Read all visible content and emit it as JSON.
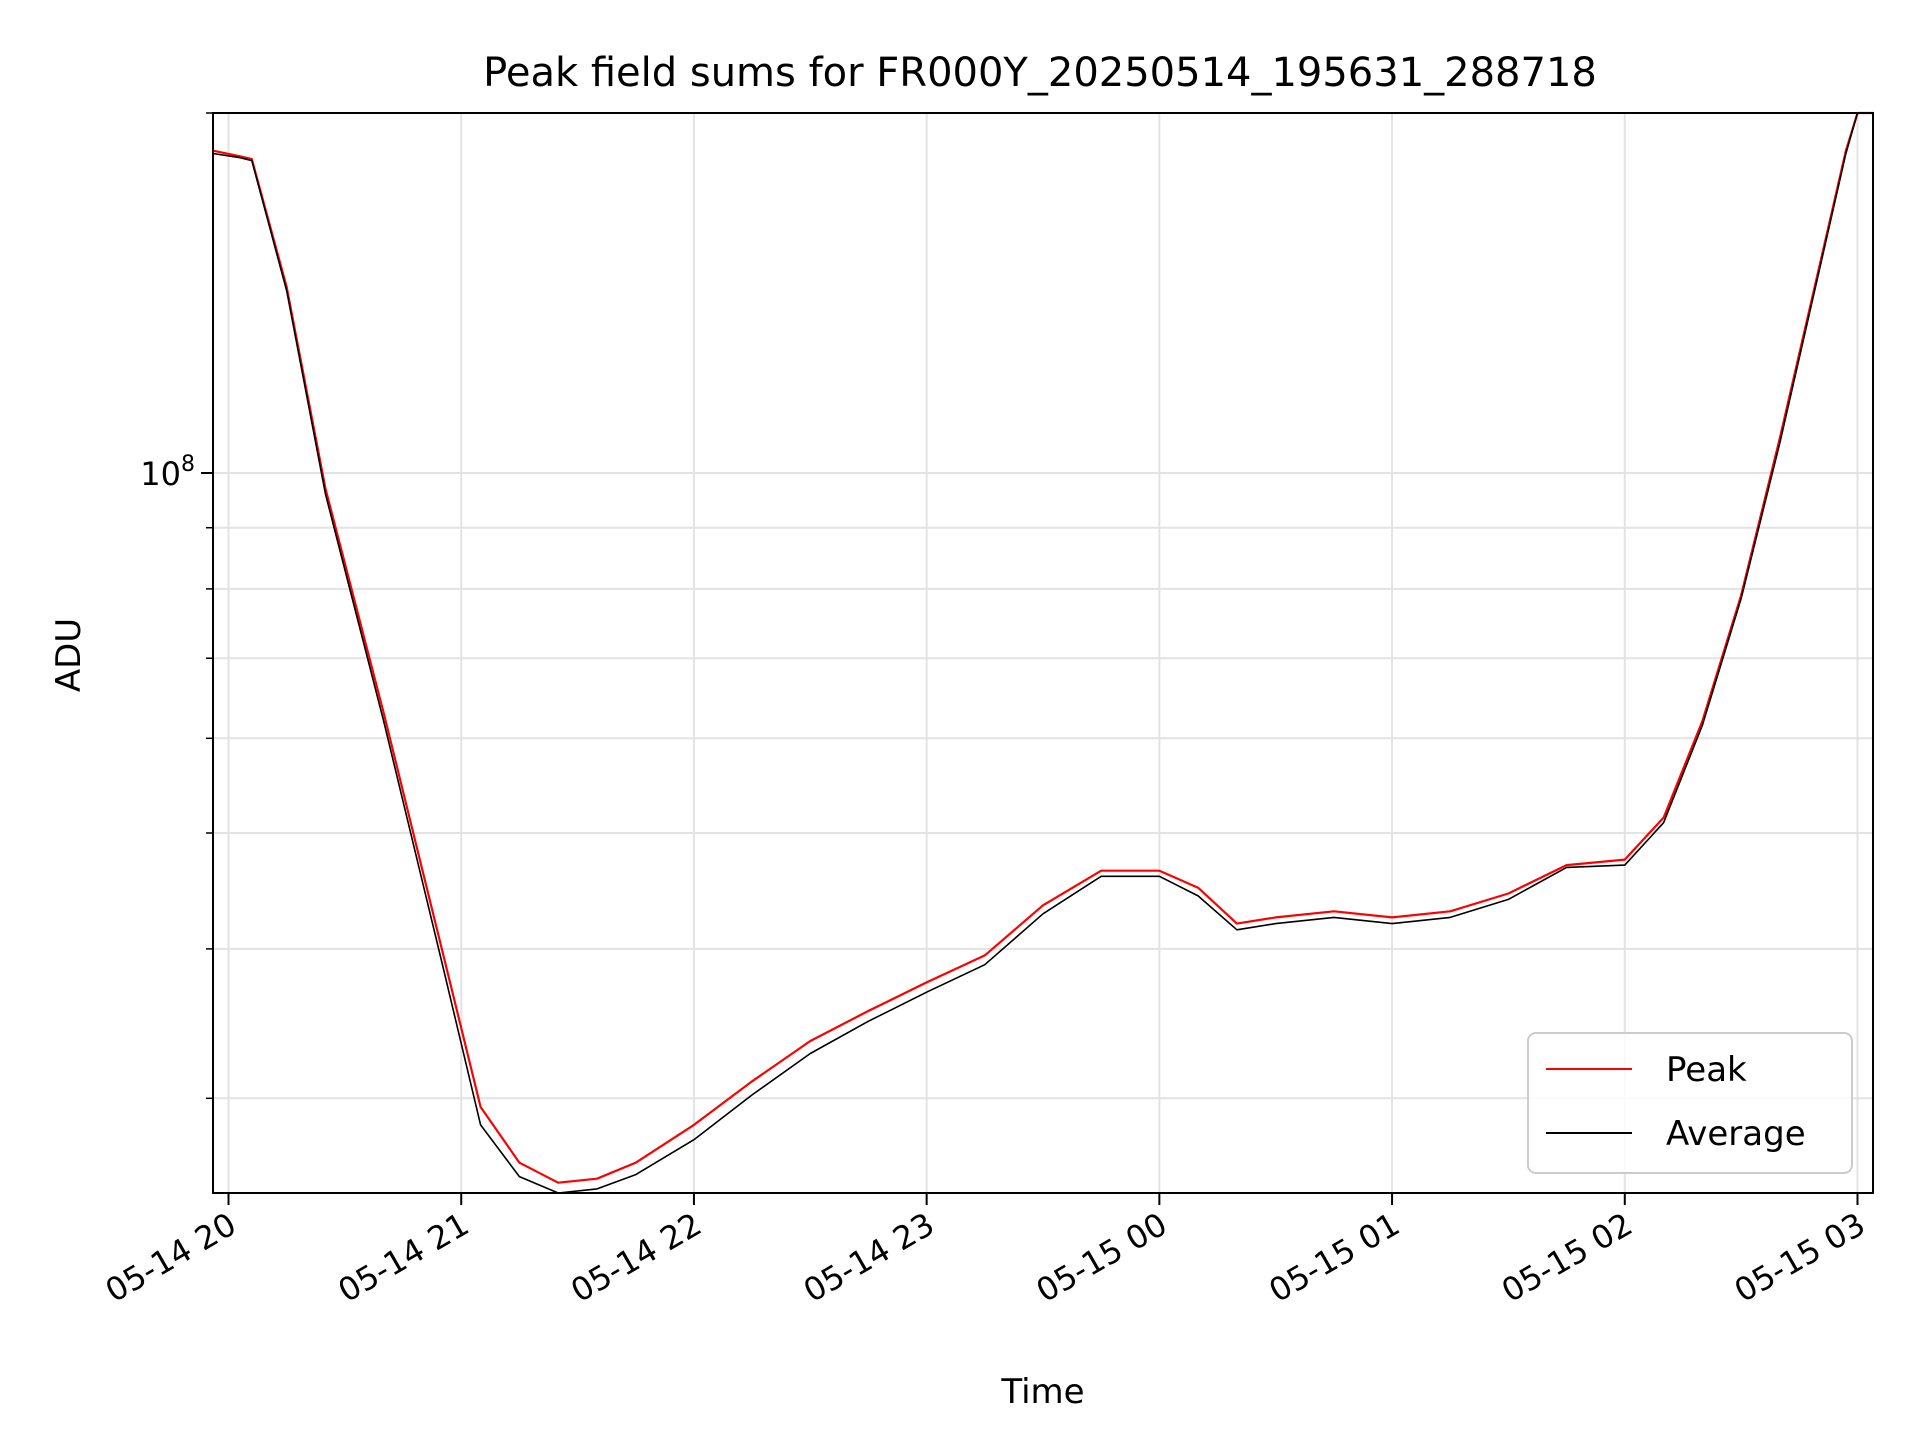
{
  "chart_data": {
    "type": "line",
    "title": "Peak field sums for FR000Y_20250514_195631_288718",
    "xlabel": "Time",
    "ylabel": "ADU",
    "y_scale": "log",
    "ylim": [
      25000000,
      200000000
    ],
    "xlim": [
      "2025-05-14 19:56",
      "2025-05-15 03:04"
    ],
    "x_ticks": [
      {
        "t": "2025-05-14 20:00",
        "label": "05-14 20"
      },
      {
        "t": "2025-05-14 21:00",
        "label": "05-14 21"
      },
      {
        "t": "2025-05-14 22:00",
        "label": "05-14 22"
      },
      {
        "t": "2025-05-14 23:00",
        "label": "05-14 23"
      },
      {
        "t": "2025-05-15 00:00",
        "label": "05-15 00"
      },
      {
        "t": "2025-05-15 01:00",
        "label": "05-15 01"
      },
      {
        "t": "2025-05-15 02:00",
        "label": "05-15 02"
      },
      {
        "t": "2025-05-15 03:00",
        "label": "05-15 03"
      }
    ],
    "y_major_ticks": [
      {
        "value": 100000000,
        "base": "10",
        "exp": "8"
      }
    ],
    "y_minor_ticks": [
      30000000,
      40000000,
      50000000,
      60000000,
      70000000,
      80000000,
      90000000,
      200000000
    ],
    "grid": true,
    "legend_position": "lower-right",
    "series": [
      {
        "name": "Peak",
        "color": "#ff0000",
        "x": [
          "2025-05-14 19:56",
          "2025-05-14 20:03",
          "2025-05-14 20:06",
          "2025-05-14 20:15",
          "2025-05-14 20:25",
          "2025-05-14 20:40",
          "2025-05-14 20:55",
          "2025-05-14 21:05",
          "2025-05-14 21:15",
          "2025-05-14 21:25",
          "2025-05-14 21:35",
          "2025-05-14 21:45",
          "2025-05-14 22:00",
          "2025-05-14 22:15",
          "2025-05-14 22:30",
          "2025-05-14 22:45",
          "2025-05-14 23:00",
          "2025-05-14 23:15",
          "2025-05-14 23:30",
          "2025-05-14 23:45",
          "2025-05-15 00:00",
          "2025-05-15 00:10",
          "2025-05-15 00:20",
          "2025-05-15 00:30",
          "2025-05-15 00:45",
          "2025-05-15 01:00",
          "2025-05-15 01:15",
          "2025-05-15 01:30",
          "2025-05-15 01:45",
          "2025-05-15 02:00",
          "2025-05-15 02:10",
          "2025-05-15 02:20",
          "2025-05-15 02:30",
          "2025-05-15 02:40",
          "2025-05-15 02:50",
          "2025-05-15 02:57",
          "2025-05-15 03:00",
          "2025-05-15 03:04"
        ],
        "values": [
          186000000,
          184000000,
          183000000,
          143000000,
          97000000,
          63000000,
          40000000,
          29500000,
          26500000,
          25500000,
          25700000,
          26500000,
          28500000,
          31000000,
          33500000,
          35500000,
          37500000,
          39500000,
          43500000,
          46500000,
          46500000,
          45000000,
          42000000,
          42500000,
          43000000,
          42500000,
          43000000,
          44500000,
          47000000,
          47500000,
          51500000,
          62000000,
          79000000,
          107000000,
          148000000,
          186000000,
          200000000,
          200000000
        ]
      },
      {
        "name": "Average",
        "color": "#000000",
        "x": [
          "2025-05-14 19:56",
          "2025-05-14 20:03",
          "2025-05-14 20:06",
          "2025-05-14 20:15",
          "2025-05-14 20:25",
          "2025-05-14 20:40",
          "2025-05-14 20:55",
          "2025-05-14 21:05",
          "2025-05-14 21:15",
          "2025-05-14 21:25",
          "2025-05-14 21:35",
          "2025-05-14 21:45",
          "2025-05-14 22:00",
          "2025-05-14 22:15",
          "2025-05-14 22:30",
          "2025-05-14 22:45",
          "2025-05-14 23:00",
          "2025-05-14 23:15",
          "2025-05-14 23:30",
          "2025-05-14 23:45",
          "2025-05-15 00:00",
          "2025-05-15 00:10",
          "2025-05-15 00:20",
          "2025-05-15 00:30",
          "2025-05-15 00:45",
          "2025-05-15 01:00",
          "2025-05-15 01:15",
          "2025-05-15 01:30",
          "2025-05-15 01:45",
          "2025-05-15 02:00",
          "2025-05-15 02:10",
          "2025-05-15 02:20",
          "2025-05-15 02:30",
          "2025-05-15 02:40",
          "2025-05-15 02:50",
          "2025-05-15 02:57",
          "2025-05-15 03:00",
          "2025-05-15 03:04"
        ],
        "values": [
          185000000,
          183500000,
          182500000,
          142000000,
          96000000,
          62000000,
          39000000,
          28500000,
          25800000,
          25000000,
          25200000,
          25900000,
          27700000,
          30200000,
          32700000,
          34800000,
          36800000,
          38800000,
          42800000,
          46000000,
          46000000,
          44300000,
          41500000,
          42000000,
          42500000,
          42000000,
          42500000,
          44000000,
          46800000,
          47000000,
          51000000,
          61500000,
          78500000,
          106000000,
          147000000,
          185000000,
          200000000,
          200000000
        ]
      }
    ]
  }
}
